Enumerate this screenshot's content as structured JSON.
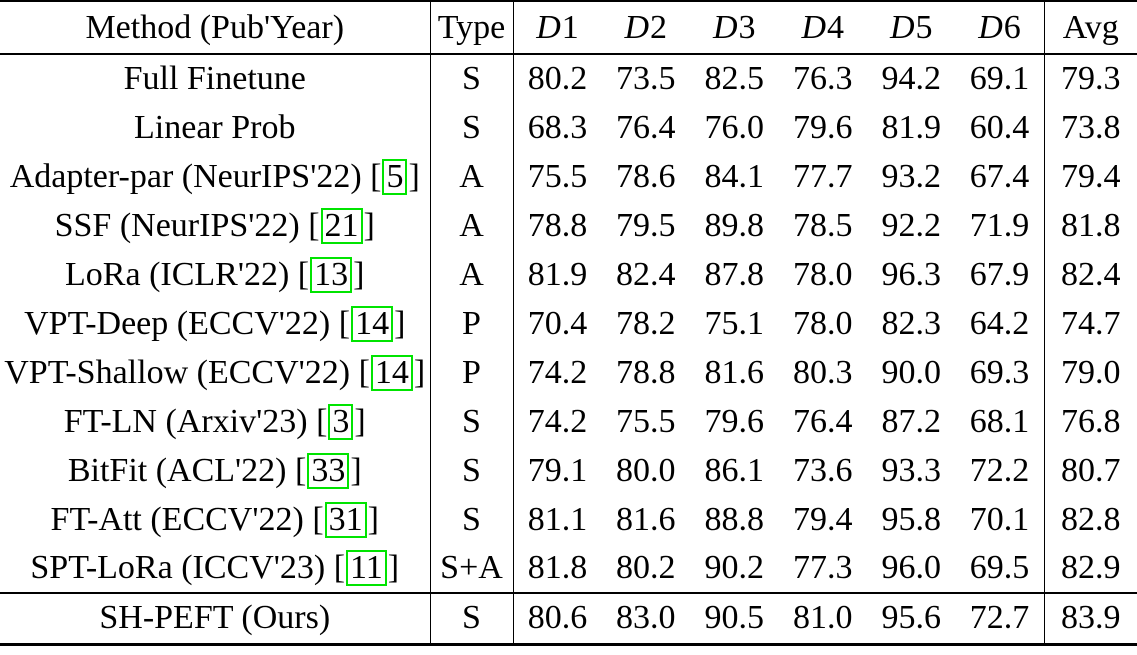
{
  "page": {
    "background_color": "#ffffff",
    "text_color": "#000000",
    "citation_box_color": "#00e400"
  },
  "table": {
    "header": {
      "method_label": "Method (Pub'Year)",
      "type_label": "Type",
      "dataset_labels": [
        "D1",
        "D2",
        "D3",
        "D4",
        "D5",
        "D6"
      ],
      "avg_label": "Avg"
    },
    "rows": [
      {
        "method": "Full Finetune",
        "citation": null,
        "type": "S",
        "values": [
          "80.2",
          "73.5",
          "82.5",
          "76.3",
          "94.2",
          "69.1"
        ],
        "avg": "79.3",
        "bold_values": [],
        "avg_bold": false,
        "ours": false
      },
      {
        "method": "Linear Prob",
        "citation": null,
        "type": "S",
        "values": [
          "68.3",
          "76.4",
          "76.0",
          "79.6",
          "81.9",
          "60.4"
        ],
        "avg": "73.8",
        "bold_values": [],
        "avg_bold": false,
        "ours": false
      },
      {
        "method": "Adapter-par (NeurIPS'22)",
        "citation": "5",
        "type": "A",
        "values": [
          "75.5",
          "78.6",
          "84.1",
          "77.7",
          "93.2",
          "67.4"
        ],
        "avg": "79.4",
        "bold_values": [],
        "avg_bold": false,
        "ours": false
      },
      {
        "method": "SSF (NeurIPS'22)",
        "citation": "21",
        "type": "A",
        "values": [
          "78.8",
          "79.5",
          "89.8",
          "78.5",
          "92.2",
          "71.9"
        ],
        "avg": "81.8",
        "bold_values": [],
        "avg_bold": false,
        "ours": false
      },
      {
        "method": "LoRa (ICLR'22)",
        "citation": "13",
        "type": "A",
        "values": [
          "81.9",
          "82.4",
          "87.8",
          "78.0",
          "96.3",
          "67.9"
        ],
        "avg": "82.4",
        "bold_values": [
          0,
          4
        ],
        "avg_bold": false,
        "ours": false
      },
      {
        "method": "VPT-Deep (ECCV'22)",
        "citation": "14",
        "type": "P",
        "values": [
          "70.4",
          "78.2",
          "75.1",
          "78.0",
          "82.3",
          "64.2"
        ],
        "avg": "74.7",
        "bold_values": [],
        "avg_bold": false,
        "ours": false
      },
      {
        "method": "VPT-Shallow (ECCV'22)",
        "citation": "14",
        "type": "P",
        "values": [
          "74.2",
          "78.8",
          "81.6",
          "80.3",
          "90.0",
          "69.3"
        ],
        "avg": "79.0",
        "bold_values": [],
        "avg_bold": false,
        "ours": false
      },
      {
        "method": "FT-LN (Arxiv'23)",
        "citation": "3",
        "type": "S",
        "values": [
          "74.2",
          "75.5",
          "79.6",
          "76.4",
          "87.2",
          "68.1"
        ],
        "avg": "76.8",
        "bold_values": [],
        "avg_bold": false,
        "ours": false
      },
      {
        "method": "BitFit (ACL'22)",
        "citation": "33",
        "type": "S",
        "values": [
          "79.1",
          "80.0",
          "86.1",
          "73.6",
          "93.3",
          "72.2"
        ],
        "avg": "80.7",
        "bold_values": [],
        "avg_bold": false,
        "ours": false
      },
      {
        "method": "FT-Att (ECCV'22)",
        "citation": "31",
        "type": "S",
        "values": [
          "81.1",
          "81.6",
          "88.8",
          "79.4",
          "95.8",
          "70.1"
        ],
        "avg": "82.8",
        "bold_values": [],
        "avg_bold": false,
        "ours": false
      },
      {
        "method": "SPT-LoRa (ICCV'23)",
        "citation": "11",
        "type": "S+A",
        "values": [
          "81.8",
          "80.2",
          "90.2",
          "77.3",
          "96.0",
          "69.5"
        ],
        "avg": "82.9",
        "bold_values": [],
        "avg_bold": false,
        "ours": false
      },
      {
        "method": "SH-PEFT (Ours)",
        "citation": null,
        "type": "S",
        "values": [
          "80.6",
          "83.0",
          "90.5",
          "81.0",
          "95.6",
          "72.7"
        ],
        "avg": "83.9",
        "bold_values": [
          1,
          2,
          3,
          5
        ],
        "avg_bold": true,
        "ours": true
      }
    ]
  }
}
